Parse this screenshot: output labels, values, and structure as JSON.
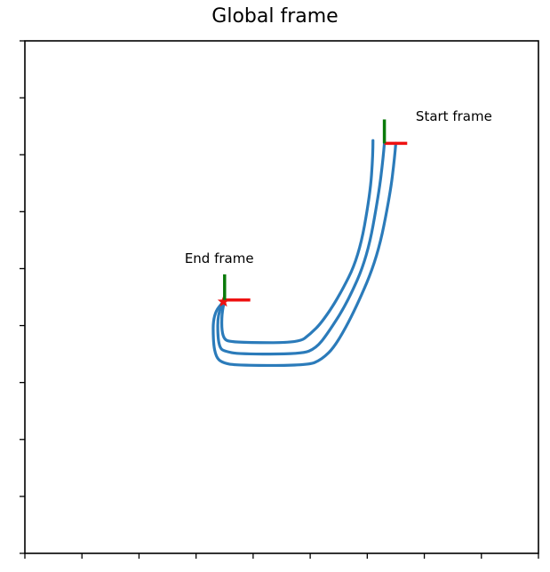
{
  "chart_data": {
    "type": "line",
    "title": "Global frame",
    "xlabel": "",
    "ylabel": "",
    "xlim": [
      0,
      9
    ],
    "ylim": [
      0,
      9
    ],
    "xticks": [
      0,
      1,
      2,
      3,
      4,
      5,
      6,
      7,
      8,
      9
    ],
    "yticks": [
      0,
      1,
      2,
      3,
      4,
      5,
      6,
      7,
      8,
      9
    ],
    "tick_labels_visible": false,
    "grid": false,
    "series_color": "#2b7bba",
    "series": [
      {
        "x": [
          6.1,
          6.1,
          6.05,
          5.85,
          5.5,
          5.2,
          5.0,
          4.8,
          3.9,
          3.6,
          3.5,
          3.45,
          3.45,
          3.5
        ],
        "y": [
          7.25,
          7.0,
          6.3,
          5.2,
          4.5,
          4.05,
          3.85,
          3.7,
          3.7,
          3.72,
          3.75,
          3.9,
          4.2,
          4.45
        ]
      },
      {
        "x": [
          6.3,
          6.28,
          6.2,
          6.0,
          5.65,
          5.3,
          5.1,
          4.85,
          3.75,
          3.5,
          3.42,
          3.38,
          3.38,
          3.5
        ],
        "y": [
          7.2,
          6.95,
          6.3,
          5.2,
          4.4,
          3.85,
          3.6,
          3.5,
          3.5,
          3.55,
          3.6,
          3.8,
          4.2,
          4.45
        ]
      },
      {
        "x": [
          6.5,
          6.48,
          6.4,
          6.18,
          5.8,
          5.45,
          5.2,
          4.95,
          3.7,
          3.45,
          3.35,
          3.3,
          3.3,
          3.5
        ],
        "y": [
          7.2,
          6.95,
          6.3,
          5.2,
          4.3,
          3.65,
          3.4,
          3.3,
          3.3,
          3.35,
          3.45,
          3.7,
          4.2,
          4.45
        ]
      }
    ],
    "frames": [
      {
        "label": "Start frame",
        "origin": [
          6.3,
          7.2
        ],
        "x_axis_len": 0.4,
        "y_axis_len": 0.42,
        "x_color": "#ee1111",
        "y_color": "#0a7a0a",
        "label_pos": [
          6.85,
          7.6
        ]
      },
      {
        "label": "End frame",
        "origin": [
          3.5,
          4.45
        ],
        "x_axis_len": 0.45,
        "y_axis_len": 0.45,
        "x_color": "#ee1111",
        "y_color": "#0a7a0a",
        "label_pos": [
          2.8,
          5.1
        ]
      }
    ],
    "end_marker": {
      "x": 3.48,
      "y": 4.42,
      "color": "#ee1111"
    }
  }
}
